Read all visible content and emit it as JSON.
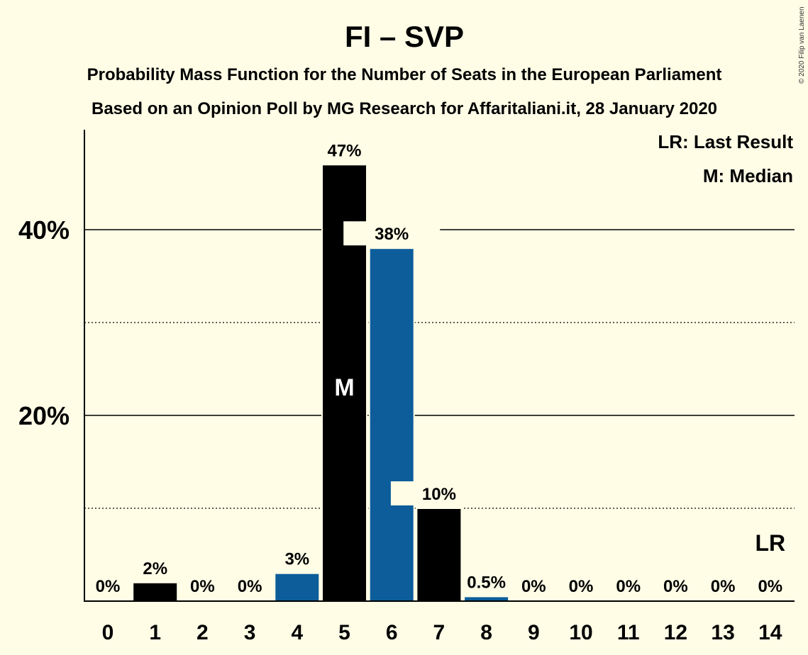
{
  "chart_data": {
    "type": "bar",
    "title": "FI – SVP",
    "subtitle_1": "Probability Mass Function for the Number of Seats in the European Parliament",
    "subtitle_2": "Based on an Opinion Poll by MG Research for Affaritaliani.it, 28 January 2020",
    "copyright": "© 2020 Filip van Laenen",
    "legend": [
      "LR: Last Result",
      "M: Median"
    ],
    "categories": [
      "0",
      "1",
      "2",
      "3",
      "4",
      "5",
      "6",
      "7",
      "8",
      "9",
      "10",
      "11",
      "12",
      "13",
      "14"
    ],
    "values": [
      0,
      2,
      0,
      0,
      3,
      47,
      38,
      10,
      0.5,
      0,
      0,
      0,
      0,
      0,
      0
    ],
    "value_labels": [
      "0%",
      "2%",
      "0%",
      "0%",
      "3%",
      "47%",
      "38%",
      "10%",
      "0.5%",
      "0%",
      "0%",
      "0%",
      "0%",
      "0%",
      "0%"
    ],
    "bar_colors": [
      "#000000",
      "#000000",
      "#000000",
      "#000000",
      "#0c5d9a",
      "#000000",
      "#0c5d9a",
      "#000000",
      "#0c5d9a",
      "#000000",
      "#0c5d9a",
      "#000000",
      "#0c5d9a",
      "#000000",
      "#0c5d9a"
    ],
    "ylim": [
      0,
      50
    ],
    "yticks": [
      20,
      40
    ],
    "ytick_labels": [
      "20%",
      "40%"
    ],
    "minor_gridlines": [
      10,
      30
    ],
    "median_seat": "5",
    "median_label": "M",
    "last_result_seat": "14",
    "last_result_label": "LR",
    "legend_position": "top-right"
  }
}
